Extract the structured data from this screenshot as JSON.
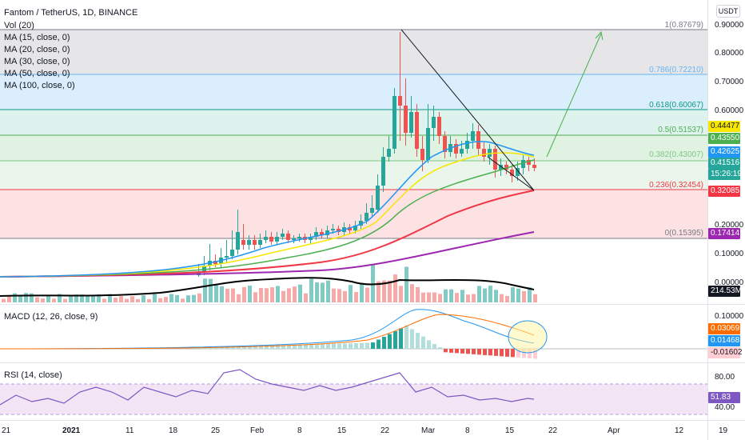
{
  "header": {
    "title": "Fantom / TetherUS, 1D, BINANCE",
    "currency_button": "USDT"
  },
  "indicators_main": [
    "Vol (20)",
    "MA (15, close, 0)",
    "MA (20, close, 0)",
    "MA (30, close, 0)",
    "MA (50, close, 0)",
    "MA (100, close, 0)"
  ],
  "fib_levels": [
    {
      "label": "1(0.87679)",
      "color": "#787b86"
    },
    {
      "label": "0.786(0.72210)",
      "color": "#64b5f6"
    },
    {
      "label": "0.618(0.60067)",
      "color": "#089981"
    },
    {
      "label": "0.5(0.51537)",
      "color": "#4caf50"
    },
    {
      "label": "0.382(0.43007)",
      "color": "#81c784"
    },
    {
      "label": "0.236(0.32454)",
      "color": "#f23645"
    },
    {
      "label": "0(0.15395)",
      "color": "#787b86"
    }
  ],
  "price_axis": [
    "0.90000",
    "0.80000",
    "0.70000",
    "0.60000",
    "0.20000",
    "0.10000",
    "0.00000"
  ],
  "price_tags": [
    {
      "value": "0.44477",
      "bg": "#f7e600",
      "fg": "#131722"
    },
    {
      "value": "0.43550",
      "bg": "#4caf50",
      "fg": "#ffffff"
    },
    {
      "value": "0.42625",
      "bg": "#2196f3",
      "fg": "#ffffff"
    },
    {
      "value": "0.41516",
      "bg": "#26a69a",
      "fg": "#ffffff"
    },
    {
      "value": "15:26:19",
      "bg": "#26a69a",
      "fg": "#ffffff"
    },
    {
      "value": "0.32085",
      "bg": "#f23645",
      "fg": "#ffffff"
    },
    {
      "value": "0.17414",
      "bg": "#9c27b0",
      "fg": "#ffffff"
    },
    {
      "value": "214.53M",
      "bg": "#131722",
      "fg": "#ffffff"
    }
  ],
  "macd": {
    "label": "MACD (12, 26, close, 9)",
    "axis": [
      "0.10000"
    ],
    "tags": [
      {
        "value": "0.03069",
        "bg": "#ff6d00",
        "fg": "#ffffff"
      },
      {
        "value": "0.01468",
        "bg": "#2196f3",
        "fg": "#ffffff"
      },
      {
        "value": "-0.01602",
        "bg": "#ffcdd2",
        "fg": "#131722"
      }
    ]
  },
  "rsi": {
    "label": "RSI (14, close)",
    "axis": [
      "80.00",
      "40.00"
    ],
    "tag": {
      "value": "51.83",
      "bg": "#7e57c2",
      "fg": "#ffffff"
    }
  },
  "date_axis": [
    "21",
    "2021",
    "11",
    "18",
    "25",
    "Feb",
    "8",
    "15",
    "22",
    "Mar",
    "8",
    "15",
    "22",
    "Apr",
    "12",
    "19"
  ],
  "colors": {
    "up": "#26a69a",
    "down": "#ef5350",
    "ma15": "#2196f3",
    "ma20": "#f7e600",
    "ma30": "#4caf50",
    "ma50": "#f23645",
    "ma100": "#9c27b0",
    "vol_ma": "#000000"
  }
}
